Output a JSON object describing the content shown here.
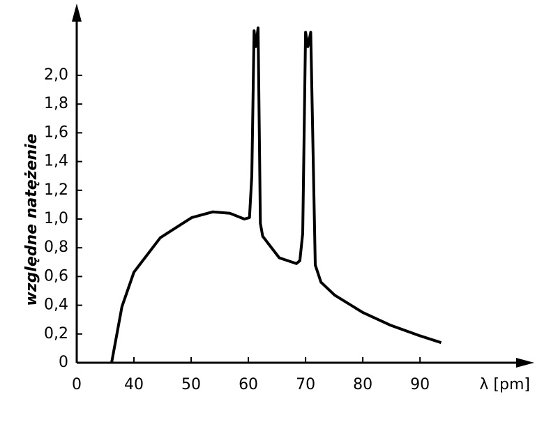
{
  "chart_data": {
    "type": "line",
    "y_label": "względne natężenie",
    "x_label": "λ [pm]",
    "xlim": [
      30,
      109
    ],
    "ylim": [
      0,
      2.5
    ],
    "xticks": [
      {
        "value": 30,
        "label": "0"
      },
      40,
      50,
      60,
      70,
      80,
      90
    ],
    "yticks": [
      0,
      {
        "value": 0.2,
        "label": "0,2"
      },
      {
        "value": 0.4,
        "label": "0,4"
      },
      {
        "value": 0.6,
        "label": "0,6"
      },
      {
        "value": 0.8,
        "label": "0,8"
      },
      {
        "value": 1.0,
        "label": "1,0"
      },
      {
        "value": 1.2,
        "label": "1,2"
      },
      {
        "value": 1.4,
        "label": "1,4"
      },
      {
        "value": 1.6,
        "label": "1,6"
      },
      {
        "value": 1.8,
        "label": "1,8"
      },
      {
        "value": 2.0,
        "label": "2,0"
      }
    ],
    "series": [
      {
        "color": "#000000",
        "x": [
          36.1,
          37.9,
          40.0,
          44.6,
          50.1,
          53.8,
          56.8,
          59.3,
          60.2,
          60.6,
          61.0,
          61.3,
          61.7,
          62.1,
          62.5,
          65.4,
          68.4,
          69.0,
          69.5,
          70.0,
          70.4,
          70.9,
          71.7,
          72.7,
          75.1,
          80.0,
          84.9,
          89.8,
          93.7
        ],
        "values": [
          0,
          0.39,
          0.63,
          0.87,
          1.01,
          1.05,
          1.04,
          1.0,
          1.01,
          1.3,
          2.31,
          2.2,
          2.33,
          0.97,
          0.88,
          0.73,
          0.69,
          0.71,
          0.9,
          2.3,
          2.2,
          2.3,
          0.68,
          0.56,
          0.47,
          0.35,
          0.26,
          0.19,
          0.14
        ]
      }
    ]
  }
}
